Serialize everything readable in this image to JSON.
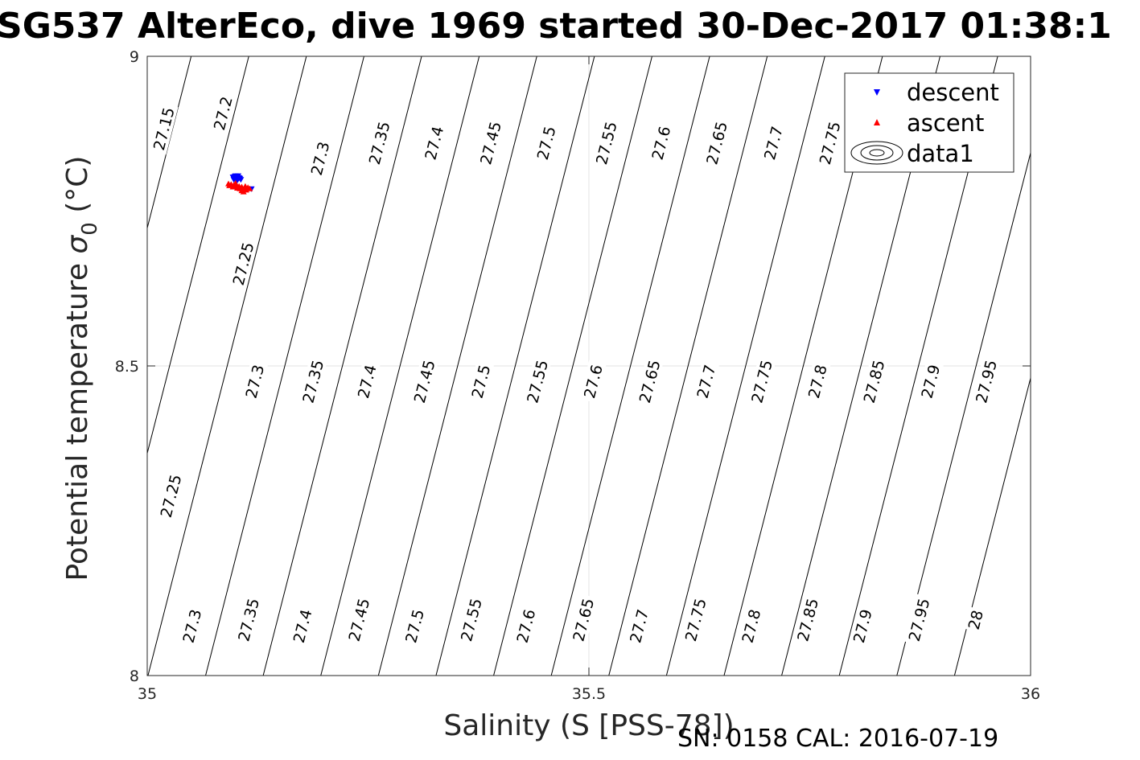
{
  "chart_data": {
    "type": "scatter",
    "title": "SG537 AlterEco, dive 1969 started 30-Dec-2017 01:38:1",
    "xlabel": "Salinity (S [PSS-78])",
    "ylabel_main": "Potential temperature ",
    "ylabel_sigma": "σ",
    "ylabel_sub": "0",
    "ylabel_unit": " (°C)",
    "xlim": [
      35,
      36
    ],
    "ylim": [
      8,
      9
    ],
    "x_ticks": [
      "35",
      "35.5",
      "36"
    ],
    "y_ticks": [
      "8",
      "8.5",
      "9"
    ],
    "grid": true,
    "legend_placement": "top-right",
    "legend": [
      "descent",
      "ascent",
      "data1"
    ],
    "contour_interval": 0.05,
    "contour_levels": [
      "27.15",
      "27.2",
      "27.25",
      "27.3",
      "27.35",
      "27.4",
      "27.45",
      "27.5",
      "27.55",
      "27.6",
      "27.65",
      "27.7",
      "27.75",
      "27.8",
      "27.85",
      "27.9",
      "27.95",
      "28"
    ],
    "contour_labels": [
      {
        "text": "27.15",
        "s": 35.0185,
        "t": 8.883
      },
      {
        "text": "27.2",
        "s": 35.0855,
        "t": 8.908
      },
      {
        "text": "27.25",
        "s": 35.1085,
        "t": 8.665
      },
      {
        "text": "27.3",
        "s": 35.1955,
        "t": 8.835
      },
      {
        "text": "27.35",
        "s": 35.2625,
        "t": 8.86
      },
      {
        "text": "27.4",
        "s": 35.3245,
        "t": 8.86
      },
      {
        "text": "27.45",
        "s": 35.3885,
        "t": 8.86
      },
      {
        "text": "27.5",
        "s": 35.4515,
        "t": 8.86
      },
      {
        "text": "27.55",
        "s": 35.5195,
        "t": 8.86
      },
      {
        "text": "27.6",
        "s": 35.5815,
        "t": 8.86
      },
      {
        "text": "27.65",
        "s": 35.6445,
        "t": 8.86
      },
      {
        "text": "27.7",
        "s": 35.7085,
        "t": 8.86
      },
      {
        "text": "27.75",
        "s": 35.7725,
        "t": 8.86
      },
      {
        "text": "27.3",
        "s": 35.1215,
        "t": 8.475
      },
      {
        "text": "27.35",
        "s": 35.1875,
        "t": 8.475
      },
      {
        "text": "27.4",
        "s": 35.2485,
        "t": 8.475
      },
      {
        "text": "27.45",
        "s": 35.3135,
        "t": 8.475
      },
      {
        "text": "27.5",
        "s": 35.3775,
        "t": 8.475
      },
      {
        "text": "27.55",
        "s": 35.4415,
        "t": 8.475
      },
      {
        "text": "27.6",
        "s": 35.5045,
        "t": 8.475
      },
      {
        "text": "27.65",
        "s": 35.5685,
        "t": 8.475
      },
      {
        "text": "27.7",
        "s": 35.6325,
        "t": 8.475
      },
      {
        "text": "27.75",
        "s": 35.6955,
        "t": 8.475
      },
      {
        "text": "27.8",
        "s": 35.7585,
        "t": 8.475
      },
      {
        "text": "27.85",
        "s": 35.8225,
        "t": 8.475
      },
      {
        "text": "27.9",
        "s": 35.8865,
        "t": 8.475
      },
      {
        "text": "27.95",
        "s": 35.9495,
        "t": 8.475
      },
      {
        "text": "27.25",
        "s": 35.0265,
        "t": 8.29
      },
      {
        "text": "27.3",
        "s": 35.0505,
        "t": 8.08
      },
      {
        "text": "27.35",
        "s": 35.1145,
        "t": 8.09
      },
      {
        "text": "27.4",
        "s": 35.1755,
        "t": 8.08
      },
      {
        "text": "27.45",
        "s": 35.2395,
        "t": 8.09
      },
      {
        "text": "27.5",
        "s": 35.3025,
        "t": 8.08
      },
      {
        "text": "27.55",
        "s": 35.3665,
        "t": 8.09
      },
      {
        "text": "27.6",
        "s": 35.4285,
        "t": 8.08
      },
      {
        "text": "27.65",
        "s": 35.4935,
        "t": 8.09
      },
      {
        "text": "27.7",
        "s": 35.5565,
        "t": 8.08
      },
      {
        "text": "27.75",
        "s": 35.6205,
        "t": 8.09
      },
      {
        "text": "27.8",
        "s": 35.6835,
        "t": 8.08
      },
      {
        "text": "27.85",
        "s": 35.7475,
        "t": 8.09
      },
      {
        "text": "27.9",
        "s": 35.8095,
        "t": 8.08
      },
      {
        "text": "27.95",
        "s": 35.8735,
        "t": 8.09
      },
      {
        "text": "28",
        "s": 35.9375,
        "t": 8.09
      }
    ],
    "series": [
      {
        "name": "descent",
        "marker": "triangle-down",
        "color": "#0000ff",
        "points": [
          [
            35.1,
            8.804
          ],
          [
            35.101,
            8.806
          ],
          [
            35.102,
            8.805
          ],
          [
            35.099,
            8.803
          ],
          [
            35.103,
            8.802
          ],
          [
            35.098,
            8.801
          ],
          [
            35.104,
            8.804
          ],
          [
            35.1,
            8.807
          ],
          [
            35.102,
            8.8
          ],
          [
            35.105,
            8.803
          ],
          [
            35.097,
            8.805
          ],
          [
            35.101,
            8.799
          ],
          [
            35.099,
            8.806
          ],
          [
            35.106,
            8.801
          ],
          [
            35.103,
            8.807
          ],
          [
            35.118,
            8.786
          ]
        ]
      },
      {
        "name": "ascent",
        "marker": "triangle-up",
        "color": "#ff0000",
        "points": [
          [
            35.092,
            8.794
          ],
          [
            35.095,
            8.793
          ],
          [
            35.098,
            8.792
          ],
          [
            35.101,
            8.79
          ],
          [
            35.104,
            8.79
          ],
          [
            35.107,
            8.789
          ],
          [
            35.11,
            8.786
          ],
          [
            35.112,
            8.784
          ],
          [
            35.109,
            8.781
          ],
          [
            35.107,
            8.783
          ],
          [
            35.114,
            8.788
          ],
          [
            35.116,
            8.786
          ],
          [
            35.093,
            8.791
          ],
          [
            35.097,
            8.789
          ],
          [
            35.102,
            8.787
          ],
          [
            35.105,
            8.786
          ],
          [
            35.1,
            8.795
          ],
          [
            35.111,
            8.79
          ]
        ]
      }
    ]
  },
  "footer": {
    "text": "SN: 0158  CAL: 2016-07-19"
  }
}
